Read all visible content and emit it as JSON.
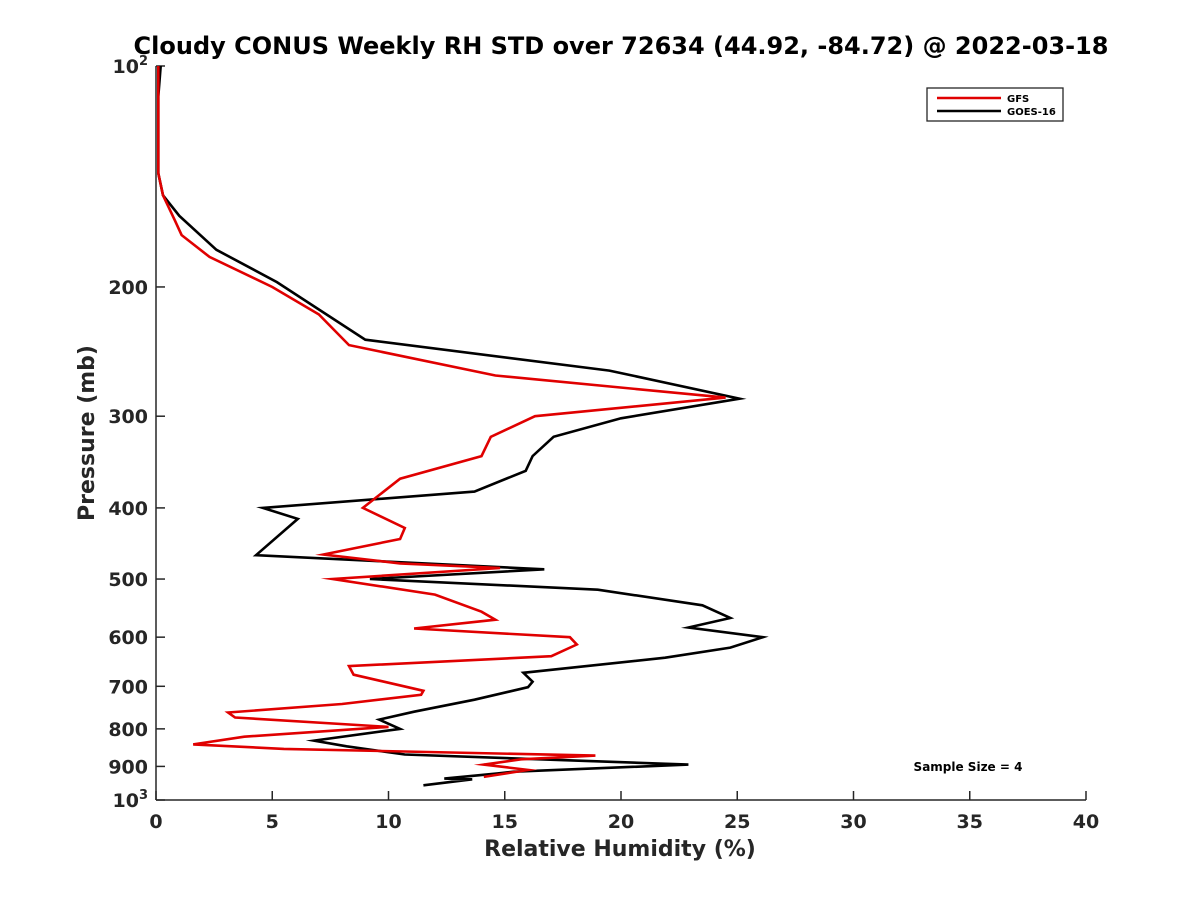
{
  "chart_data": {
    "type": "line",
    "title": "Cloudy CONUS Weekly RH STD over 72634 (44.92, -84.72) @ 2022-03-18",
    "xlabel": "Relative Humidity (%)",
    "ylabel": "Pressure (mb)",
    "xlim": [
      0,
      40
    ],
    "ylim": [
      100,
      1000
    ],
    "y_scale": "log",
    "y_reversed": true,
    "x_ticks": [
      0,
      5,
      10,
      15,
      20,
      25,
      30,
      35,
      40
    ],
    "y_ticks": [
      {
        "value": 100,
        "base": "10",
        "exp": "2"
      },
      {
        "value": 200,
        "label": "200"
      },
      {
        "value": 300,
        "label": "300"
      },
      {
        "value": 400,
        "label": "400"
      },
      {
        "value": 500,
        "label": "500"
      },
      {
        "value": 600,
        "label": "600"
      },
      {
        "value": 700,
        "label": "700"
      },
      {
        "value": 800,
        "label": "800"
      },
      {
        "value": 900,
        "label": "900"
      },
      {
        "value": 1000,
        "base": "10",
        "exp": "3"
      }
    ],
    "legend_position": "top-right",
    "grid": false,
    "annotation": "Sample Size = 4",
    "series": [
      {
        "name": "GFS",
        "color": "#e00000",
        "points": [
          [
            0.1,
            100
          ],
          [
            0.1,
            110
          ],
          [
            0.1,
            125
          ],
          [
            0.1,
            140
          ],
          [
            0.3,
            150
          ],
          [
            0.8,
            162
          ],
          [
            1.1,
            170
          ],
          [
            2.3,
            182
          ],
          [
            5.0,
            200
          ],
          [
            7.0,
            218
          ],
          [
            8.3,
            240
          ],
          [
            14.6,
            264
          ],
          [
            24.5,
            283
          ],
          [
            16.3,
            300
          ],
          [
            14.4,
            320
          ],
          [
            14.0,
            340
          ],
          [
            10.5,
            365
          ],
          [
            8.9,
            400
          ],
          [
            10.7,
            426
          ],
          [
            10.5,
            441
          ],
          [
            7.2,
            463
          ],
          [
            10.5,
            476
          ],
          [
            14.8,
            483
          ],
          [
            7.6,
            500
          ],
          [
            12.0,
            525
          ],
          [
            14.0,
            554
          ],
          [
            14.6,
            568
          ],
          [
            11.1,
            584
          ],
          [
            17.8,
            600
          ],
          [
            18.1,
            614
          ],
          [
            17.0,
            637
          ],
          [
            8.3,
            657
          ],
          [
            8.5,
            675
          ],
          [
            11.5,
            710
          ],
          [
            11.4,
            719
          ],
          [
            8.0,
            740
          ],
          [
            3.1,
            760
          ],
          [
            3.4,
            772
          ],
          [
            10.0,
            795
          ],
          [
            3.8,
            820
          ],
          [
            1.6,
            840
          ],
          [
            5.5,
            852
          ],
          [
            18.9,
            870
          ],
          [
            15.7,
            880
          ],
          [
            14.1,
            895
          ],
          [
            16.0,
            910
          ],
          [
            14.1,
            930
          ]
        ]
      },
      {
        "name": "GOES-16",
        "color": "#000000",
        "points": [
          [
            0.2,
            100
          ],
          [
            0.1,
            110
          ],
          [
            0.1,
            125
          ],
          [
            0.1,
            140
          ],
          [
            0.3,
            150
          ],
          [
            1.0,
            160
          ],
          [
            2.6,
            178
          ],
          [
            5.2,
            197
          ],
          [
            9.0,
            236
          ],
          [
            19.5,
            260
          ],
          [
            25.1,
            284
          ],
          [
            20.0,
            302
          ],
          [
            17.1,
            320
          ],
          [
            16.2,
            340
          ],
          [
            15.9,
            356
          ],
          [
            13.7,
            380
          ],
          [
            4.6,
            400
          ],
          [
            6.1,
            414
          ],
          [
            4.3,
            464
          ],
          [
            16.7,
            485
          ],
          [
            9.2,
            500
          ],
          [
            19.0,
            517
          ],
          [
            23.5,
            543
          ],
          [
            24.7,
            565
          ],
          [
            22.9,
            582
          ],
          [
            26.1,
            600
          ],
          [
            24.7,
            620
          ],
          [
            21.9,
            640
          ],
          [
            15.8,
            671
          ],
          [
            16.2,
            690
          ],
          [
            16.0,
            702
          ],
          [
            13.7,
            730
          ],
          [
            11.1,
            758
          ],
          [
            9.6,
            777
          ],
          [
            10.5,
            800
          ],
          [
            6.8,
            830
          ],
          [
            8.2,
            845
          ],
          [
            10.7,
            867
          ],
          [
            22.9,
            895
          ],
          [
            15.4,
            915
          ],
          [
            14.7,
            920
          ],
          [
            12.4,
            935
          ],
          [
            13.6,
            937
          ],
          [
            11.5,
            955
          ]
        ]
      }
    ]
  }
}
